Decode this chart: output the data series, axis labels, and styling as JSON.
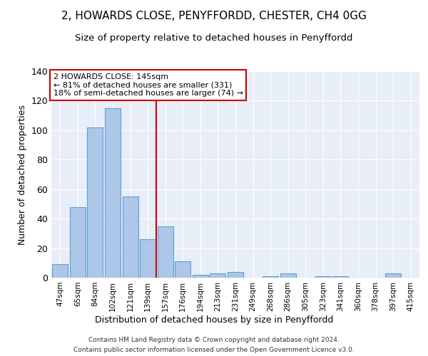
{
  "title": "2, HOWARDS CLOSE, PENYFFORDD, CHESTER, CH4 0GG",
  "subtitle": "Size of property relative to detached houses in Penyffordd",
  "xlabel": "Distribution of detached houses by size in Penyffordd",
  "ylabel": "Number of detached properties",
  "categories": [
    "47sqm",
    "65sqm",
    "84sqm",
    "102sqm",
    "121sqm",
    "139sqm",
    "157sqm",
    "176sqm",
    "194sqm",
    "213sqm",
    "231sqm",
    "249sqm",
    "268sqm",
    "286sqm",
    "305sqm",
    "323sqm",
    "341sqm",
    "360sqm",
    "378sqm",
    "397sqm",
    "415sqm"
  ],
  "values": [
    9,
    48,
    102,
    115,
    55,
    26,
    35,
    11,
    2,
    3,
    4,
    0,
    1,
    3,
    0,
    1,
    1,
    0,
    0,
    3,
    0
  ],
  "bar_color": "#aec6e8",
  "bar_edge_color": "#5a9fd4",
  "vline_x": 5.5,
  "vline_color": "#cc0000",
  "annotation_text": "2 HOWARDS CLOSE: 145sqm\n← 81% of detached houses are smaller (331)\n18% of semi-detached houses are larger (74) →",
  "annotation_box_color": "#cc0000",
  "ylim": [
    0,
    140
  ],
  "yticks": [
    0,
    20,
    40,
    60,
    80,
    100,
    120,
    140
  ],
  "background_color": "#e8eef8",
  "footer_line1": "Contains HM Land Registry data © Crown copyright and database right 2024.",
  "footer_line2": "Contains public sector information licensed under the Open Government Licence v3.0."
}
